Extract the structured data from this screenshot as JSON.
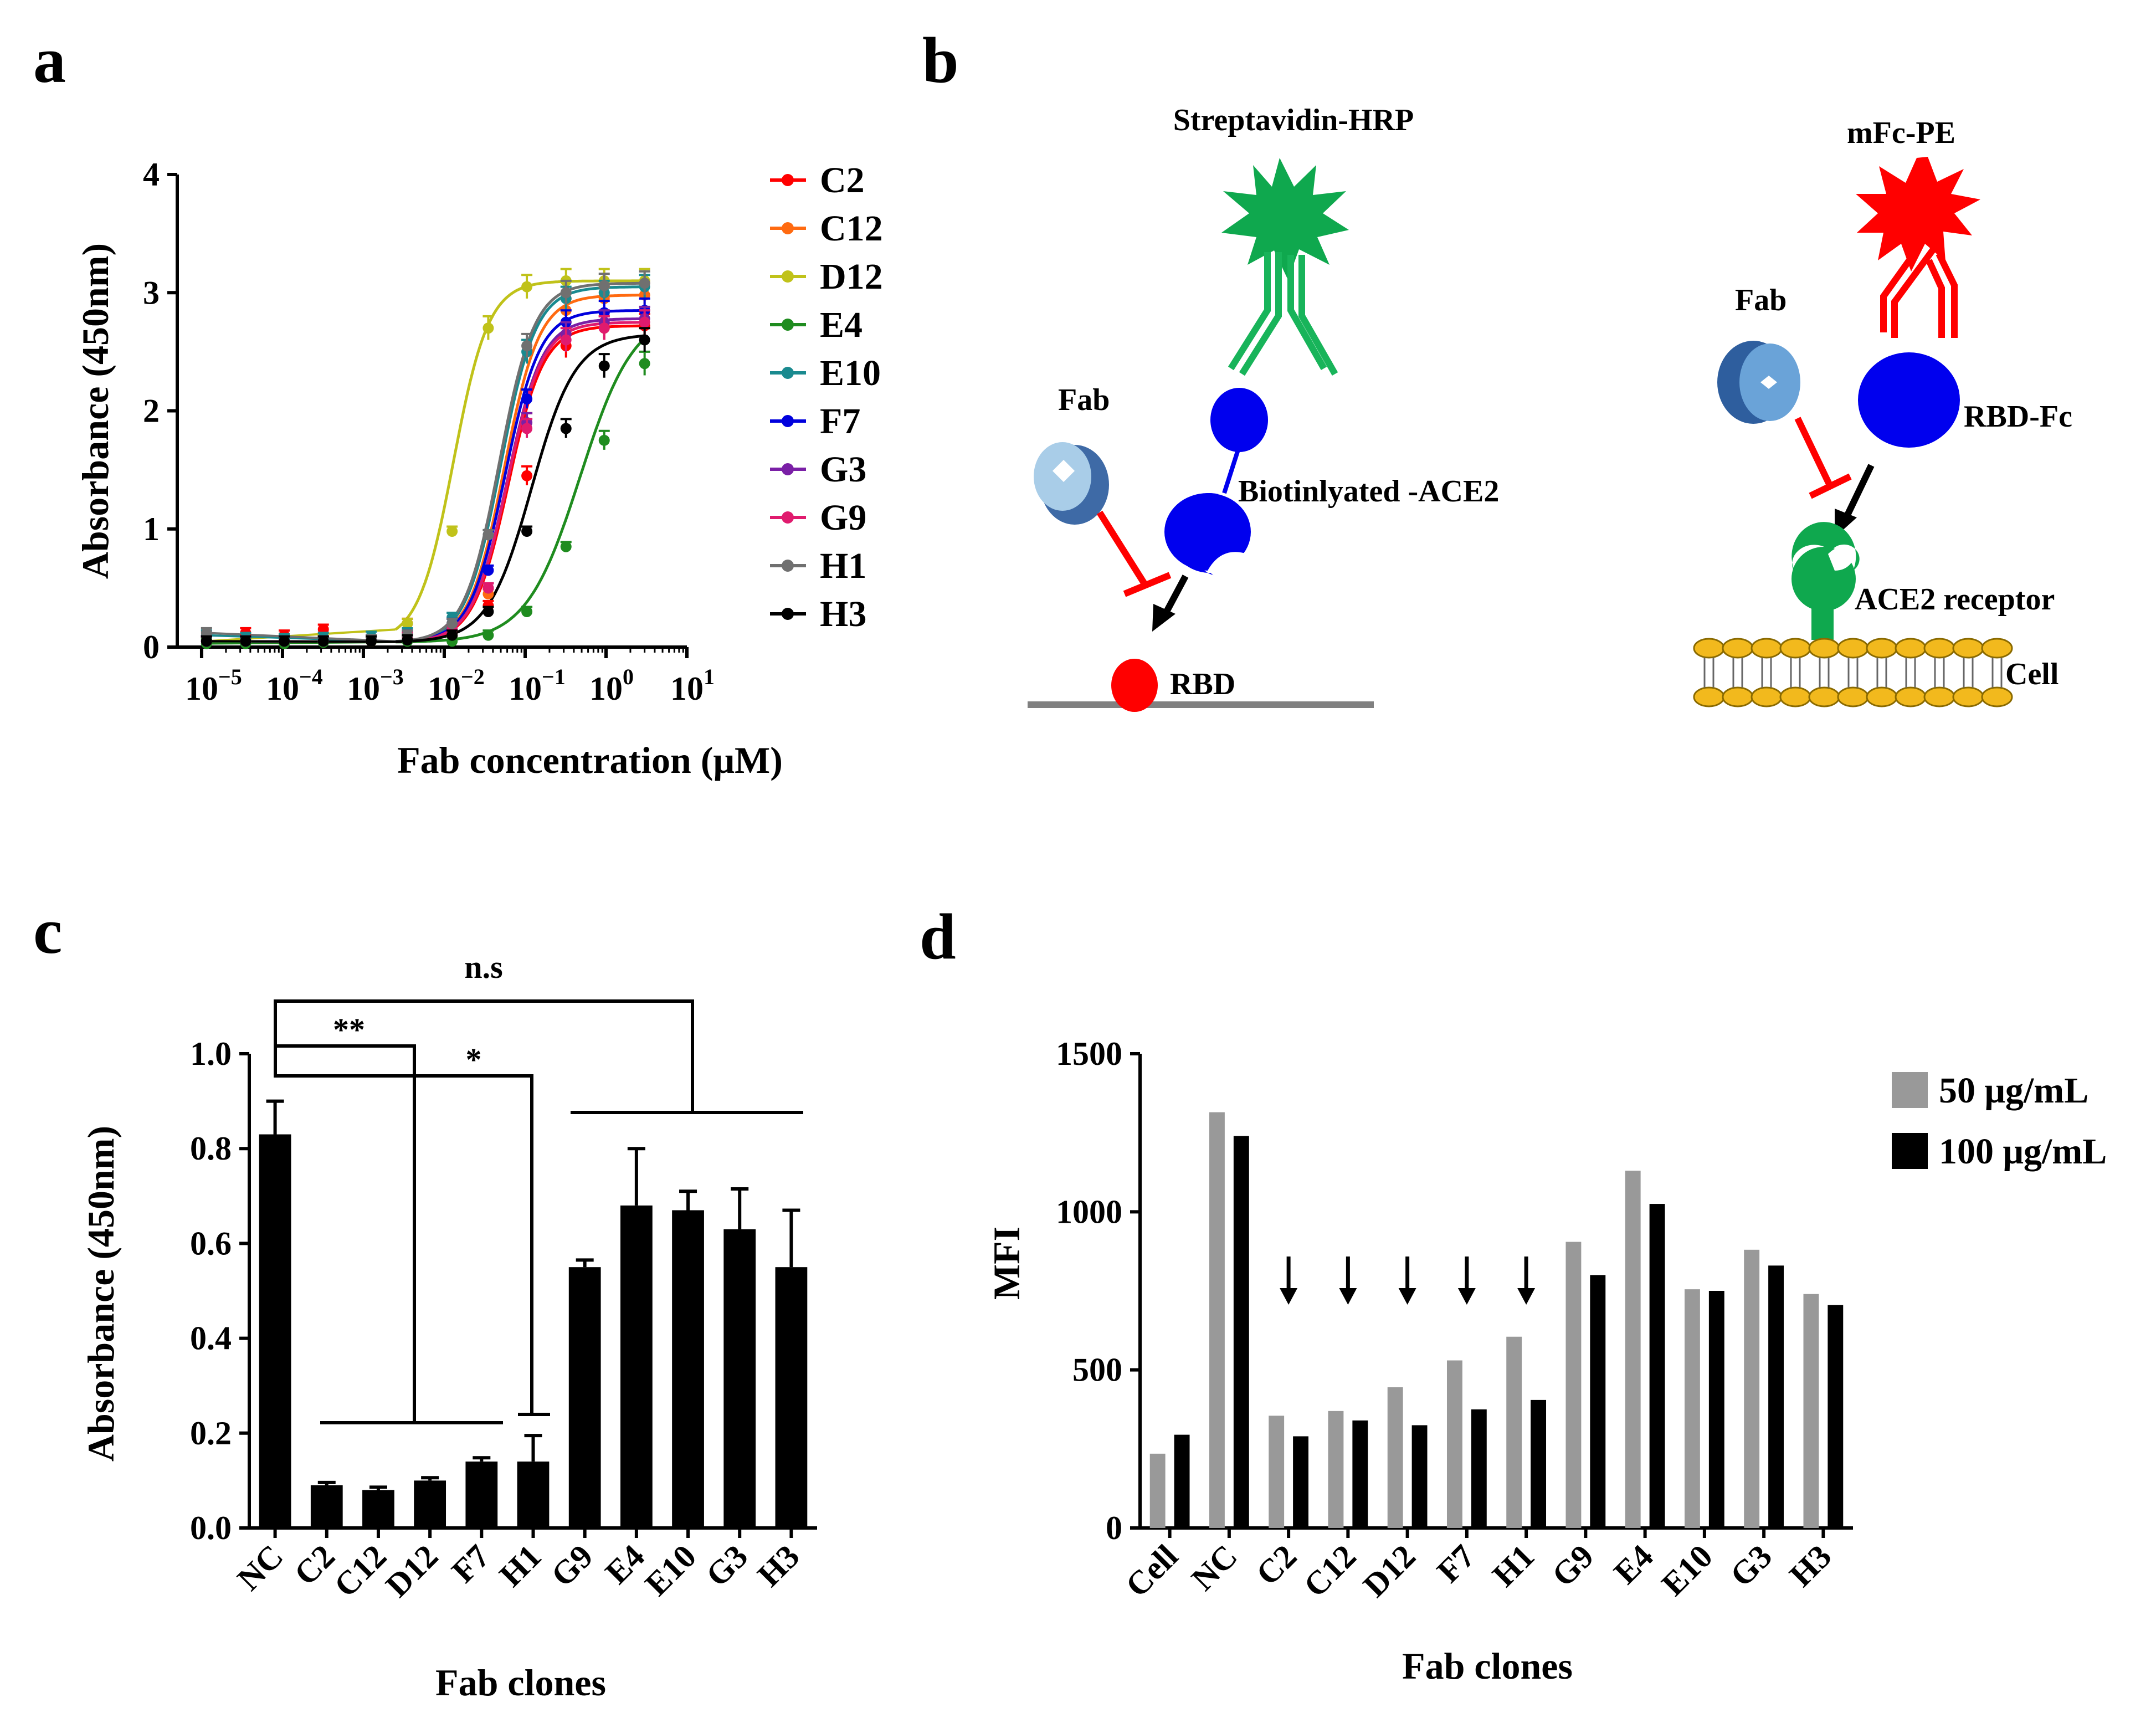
{
  "panels": {
    "a": {
      "label": "a"
    },
    "b": {
      "label": "b"
    },
    "c": {
      "label": "c"
    },
    "d": {
      "label": "d"
    }
  },
  "chart_data": [
    {
      "panel": "a",
      "type": "line",
      "xscale": "log",
      "xlabel": "Fab concentration (μM)",
      "ylabel": "Absorbance (450nm)",
      "xlim": [
        5e-06,
        10
      ],
      "ylim": [
        0,
        4
      ],
      "yticks": [
        "0",
        "1",
        "2",
        "3",
        "4"
      ],
      "xtick_bases": [
        "10",
        "10",
        "10",
        "10",
        "10",
        "10",
        "10"
      ],
      "xtick_exps": [
        "−5",
        "−4",
        "−3",
        "−2",
        "−1",
        "0",
        "1"
      ],
      "x": [
        1.15e-05,
        3.5e-05,
        0.000105,
        0.00032,
        0.00125,
        0.0035,
        0.0125,
        0.035,
        0.105,
        0.32,
        0.95,
        3.0
      ],
      "legend_position": "right",
      "series": [
        {
          "name": "C2",
          "color": "#ff0000",
          "top": 2.72,
          "ec50": 0.062,
          "hill": 2.0,
          "values": [
            0.05,
            0.12,
            0.1,
            0.15,
            0.05,
            0.2,
            0.1,
            0.35,
            1.45,
            2.55,
            2.7,
            2.72
          ]
        },
        {
          "name": "C12",
          "color": "#ff6a10",
          "top": 2.98,
          "ec50": 0.055,
          "hill": 2.0,
          "values": [
            0.05,
            0.04,
            0.05,
            0.05,
            0.05,
            0.08,
            0.1,
            0.45,
            1.9,
            2.85,
            2.95,
            2.98
          ]
        },
        {
          "name": "D12",
          "color": "#c0c21a",
          "top": 3.1,
          "ec50": 0.013,
          "hill": 2.0,
          "values": [
            0.05,
            0.04,
            0.05,
            0.05,
            0.06,
            0.2,
            0.98,
            2.7,
            3.05,
            3.1,
            3.1,
            3.1
          ]
        },
        {
          "name": "E4",
          "color": "#1f8c1f",
          "top": 2.85,
          "ec50": 0.48,
          "hill": 1.3,
          "values": [
            0.03,
            0.03,
            0.03,
            0.04,
            0.05,
            0.05,
            0.05,
            0.1,
            0.3,
            0.85,
            1.75,
            2.4
          ]
        },
        {
          "name": "E10",
          "color": "#1a8a8f",
          "top": 3.05,
          "ec50": 0.05,
          "hill": 2.0,
          "values": [
            0.1,
            0.08,
            0.07,
            0.08,
            0.09,
            0.12,
            0.25,
            0.95,
            2.5,
            2.95,
            3.0,
            3.05
          ]
        },
        {
          "name": "F7",
          "color": "#0000dd",
          "top": 2.85,
          "ec50": 0.056,
          "hill": 2.0,
          "values": [
            0.05,
            0.05,
            0.05,
            0.05,
            0.06,
            0.1,
            0.2,
            0.65,
            2.1,
            2.75,
            2.83,
            2.85
          ]
        },
        {
          "name": "G3",
          "color": "#7a1fa6",
          "top": 2.78,
          "ec50": 0.06,
          "hill": 2.0,
          "values": [
            0.05,
            0.05,
            0.05,
            0.05,
            0.06,
            0.08,
            0.15,
            0.5,
            1.9,
            2.65,
            2.75,
            2.78
          ]
        },
        {
          "name": "G9",
          "color": "#e01b6e",
          "top": 2.75,
          "ec50": 0.06,
          "hill": 2.0,
          "values": [
            0.05,
            0.05,
            0.05,
            0.05,
            0.06,
            0.08,
            0.15,
            0.5,
            1.85,
            2.6,
            2.7,
            2.75
          ]
        },
        {
          "name": "H1",
          "color": "#707070",
          "top": 3.08,
          "ec50": 0.048,
          "hill": 2.0,
          "values": [
            0.12,
            0.05,
            0.05,
            0.05,
            0.06,
            0.1,
            0.2,
            0.95,
            2.55,
            3.0,
            3.06,
            3.08
          ]
        },
        {
          "name": "H3",
          "color": "#000000",
          "top": 2.65,
          "ec50": 0.12,
          "hill": 1.6,
          "values": [
            0.05,
            0.05,
            0.05,
            0.05,
            0.05,
            0.06,
            0.1,
            0.3,
            0.98,
            1.85,
            2.38,
            2.6
          ]
        }
      ]
    },
    {
      "panel": "c",
      "type": "bar",
      "xlabel": "Fab clones",
      "ylabel": "Absorbance (450nm)",
      "ylim": [
        0,
        1.0
      ],
      "yticks": [
        "0.0",
        "0.2",
        "0.4",
        "0.6",
        "0.8",
        "1.0"
      ],
      "categories": [
        "NC",
        "C2",
        "C12",
        "D12",
        "F7",
        "H1",
        "G9",
        "E4",
        "E10",
        "G3",
        "H3"
      ],
      "values": [
        0.83,
        0.09,
        0.08,
        0.1,
        0.14,
        0.14,
        0.55,
        0.68,
        0.67,
        0.63,
        0.55
      ],
      "errors": [
        0.07,
        0.006,
        0.006,
        0.006,
        0.008,
        0.055,
        0.015,
        0.12,
        0.04,
        0.085,
        0.12
      ],
      "annotations": [
        "n.s",
        "**",
        "*"
      ]
    },
    {
      "panel": "d",
      "type": "bar",
      "xlabel": "Fab clones",
      "ylabel": "MFI",
      "ylim": [
        0,
        1500
      ],
      "yticks": [
        "0",
        "500",
        "1000",
        "1500"
      ],
      "categories": [
        "Cell",
        "NC",
        "C2",
        "C12",
        "D12",
        "F7",
        "H1",
        "G9",
        "E4",
        "E10",
        "G3",
        "H3"
      ],
      "series": [
        {
          "name": "50 μg/mL",
          "color": "#999999",
          "values": [
            235,
            1315,
            355,
            370,
            445,
            530,
            605,
            905,
            1130,
            755,
            880,
            740
          ]
        },
        {
          "name": "100 μg/mL",
          "color": "#000000",
          "values": [
            295,
            1240,
            290,
            340,
            325,
            375,
            405,
            800,
            1025,
            750,
            830,
            705
          ]
        }
      ],
      "arrows_over": [
        "C2",
        "C12",
        "D12",
        "F7",
        "H1"
      ],
      "legend_position": "top-right"
    }
  ],
  "diagram_b": {
    "left": {
      "conjugate": "Streptavidin-HRP",
      "fab": "Fab",
      "target": "Biotinlyated -ACE2",
      "antigen": "RBD"
    },
    "right": {
      "conjugate": "mFc-PE",
      "fab": "Fab",
      "ligand": "RBD-Fc",
      "receptor": "ACE2 receptor",
      "cell": "Cell"
    }
  }
}
